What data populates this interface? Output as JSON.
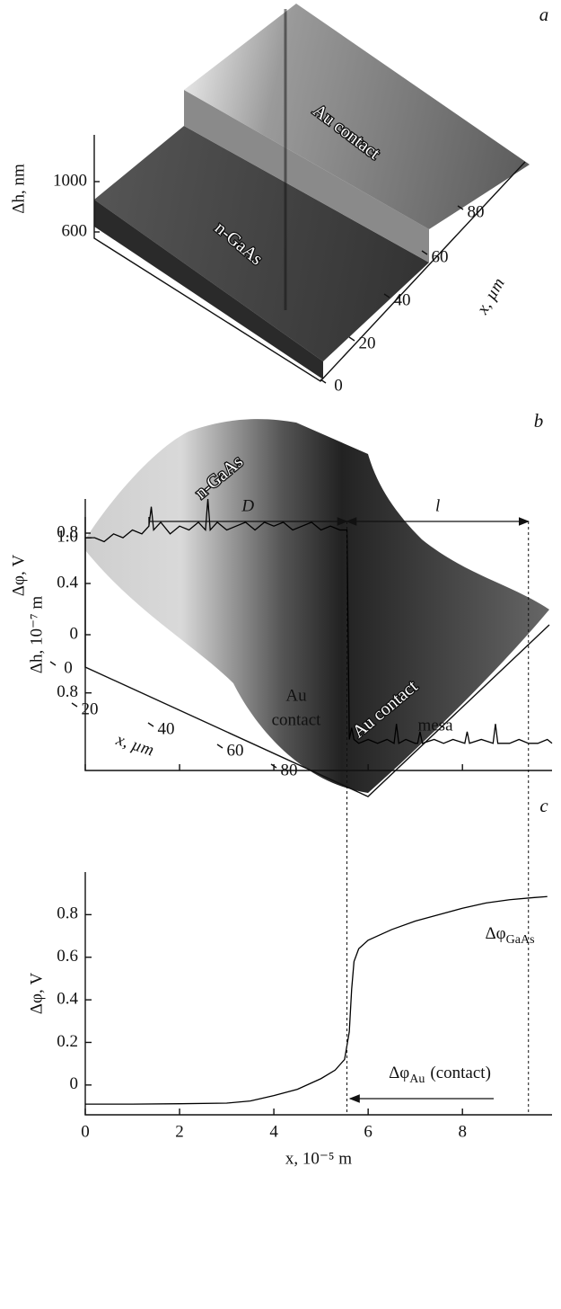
{
  "chart_data": [
    {
      "type": "surface",
      "panel": "a",
      "zlabel": "Δh, nm",
      "zticks": [
        600,
        1000
      ],
      "xlabel": "x, µm",
      "xticks": [
        0,
        20,
        40,
        60,
        80
      ],
      "annotations": [
        "Au contact",
        "n-GaAs"
      ]
    },
    {
      "type": "surface",
      "panel": "b",
      "zlabel": "Δφ, V",
      "zticks": [
        0,
        0.4,
        0.8
      ],
      "xlabel": "x, µm",
      "xticks": [
        0,
        20,
        40,
        60,
        80
      ],
      "annotations": [
        "n-GaAs",
        "Au contact"
      ]
    },
    {
      "type": "line",
      "panel": "c",
      "ylabel": "Δh, 10⁻⁷ m",
      "color": "#000000",
      "xlim": [
        0,
        9.9
      ],
      "ylim": [
        0.7,
        1.05
      ],
      "yticks": [
        0.8,
        {
          "value": 1,
          "label": "1.0"
        }
      ],
      "x": [
        0,
        0.2,
        0.4,
        0.6,
        0.8,
        1.0,
        1.2,
        1.35,
        1.4,
        1.45,
        1.6,
        1.8,
        2.0,
        2.2,
        2.4,
        2.55,
        2.6,
        2.65,
        2.8,
        3.0,
        3.2,
        3.4,
        3.6,
        3.8,
        4.0,
        4.2,
        4.4,
        4.6,
        4.8,
        5.0,
        5.2,
        5.4,
        5.55,
        5.6,
        5.65,
        5.7,
        5.8,
        6.0,
        6.2,
        6.4,
        6.55,
        6.6,
        6.65,
        6.8,
        7.0,
        7.05,
        7.1,
        7.15,
        7.4,
        7.6,
        7.8,
        8.05,
        8.1,
        8.15,
        8.4,
        8.65,
        8.7,
        8.75,
        9.0,
        9.2,
        9.4,
        9.6,
        9.8,
        9.9
      ],
      "values": [
        1.0,
        1.0,
        0.995,
        1.005,
        1.0,
        1.01,
        1.005,
        1.015,
        1.04,
        1.01,
        1.02,
        1.005,
        1.015,
        1.01,
        1.02,
        1.01,
        1.05,
        1.01,
        1.02,
        1.01,
        1.015,
        1.02,
        1.01,
        1.02,
        1.015,
        1.02,
        1.01,
        1.015,
        1.02,
        1.01,
        1.015,
        1.01,
        1.01,
        0.74,
        0.755,
        0.74,
        0.735,
        0.74,
        0.735,
        0.74,
        0.735,
        0.76,
        0.735,
        0.74,
        0.735,
        0.735,
        0.75,
        0.735,
        0.74,
        0.735,
        0.74,
        0.735,
        0.75,
        0.735,
        0.74,
        0.735,
        0.76,
        0.735,
        0.735,
        0.74,
        0.735,
        0.735,
        0.74,
        0.735
      ],
      "vlines": [
        5.55,
        9.4
      ],
      "spans": [
        {
          "label": "D",
          "from": 1.35,
          "to": 5.55
        },
        {
          "label": "l",
          "from": 5.55,
          "to": 9.4
        }
      ],
      "annotations": [
        {
          "text": [
            "Au",
            "contact"
          ]
        },
        {
          "text": [
            "mesa"
          ]
        }
      ]
    },
    {
      "type": "line",
      "ylabel": "Δφ, V",
      "xlabel": "x, 10⁻⁵ m",
      "color": "#000000",
      "xlim": [
        0,
        9.9
      ],
      "ylim": [
        -0.14,
        1.0
      ],
      "xticks": [
        0,
        2,
        4,
        6,
        8
      ],
      "yticks": [
        0,
        0.2,
        0.4,
        0.6,
        0.8
      ],
      "x": [
        0,
        1,
        2,
        3,
        3.5,
        4,
        4.5,
        5,
        5.3,
        5.5,
        5.6,
        5.65,
        5.7,
        5.8,
        6.0,
        6.5,
        7,
        7.5,
        8,
        8.5,
        9,
        9.5,
        9.8
      ],
      "values": [
        -0.09,
        -0.09,
        -0.088,
        -0.085,
        -0.075,
        -0.05,
        -0.02,
        0.03,
        0.07,
        0.12,
        0.25,
        0.45,
        0.58,
        0.64,
        0.68,
        0.73,
        0.77,
        0.8,
        0.83,
        0.855,
        0.87,
        0.88,
        0.885
      ],
      "annotations": [
        {
          "symbol": "Δφ",
          "sub": "GaAs"
        },
        {
          "symbol": "Δφ",
          "sub": "Au",
          "suffix": "(contact)"
        }
      ]
    }
  ]
}
